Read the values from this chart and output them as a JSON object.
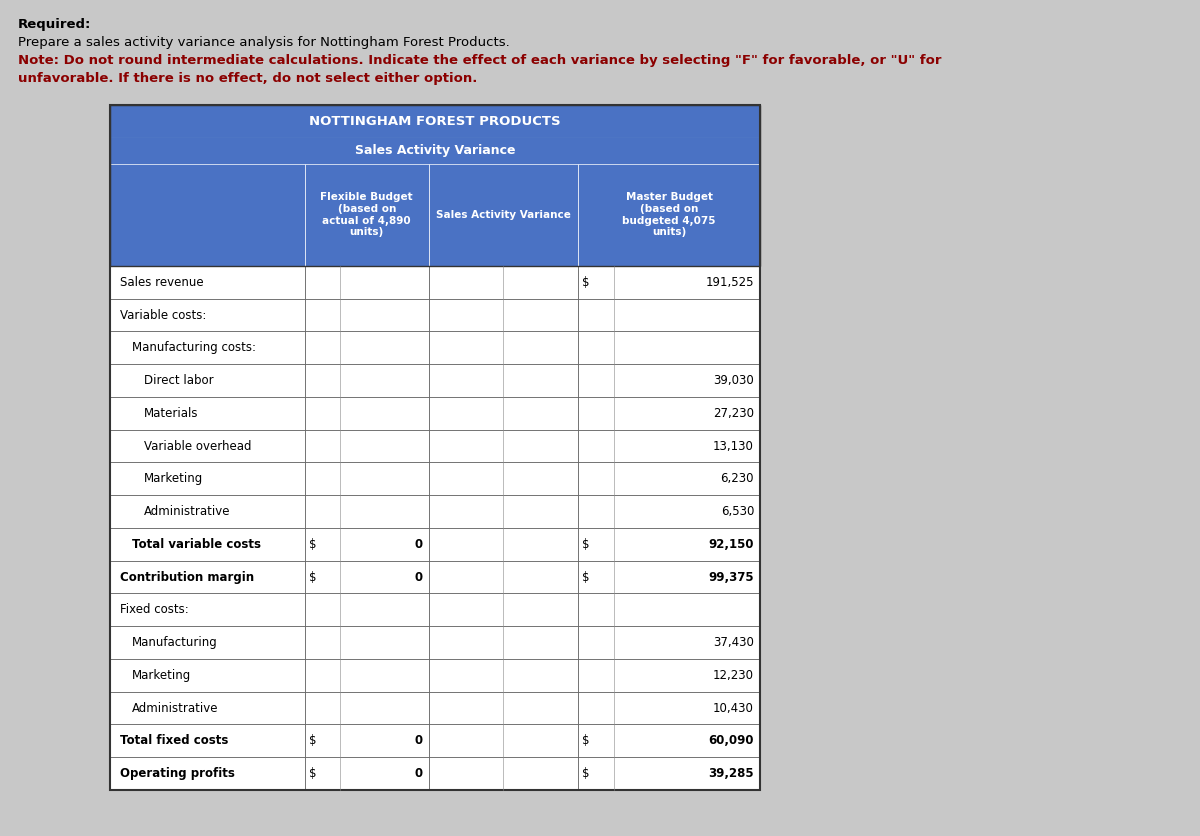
{
  "title_company": "NOTTINGHAM FOREST PRODUCTS",
  "title_report": "Sales Activity Variance",
  "header_bg": "#4a72c4",
  "header_text_color": "#FFFFFF",
  "row_bg": "#FFFFFF",
  "border_color": "#555555",
  "text_color": "#000000",
  "bg_color": "#C8C8C8",
  "rows": [
    {
      "label": "Sales revenue",
      "indent": 0,
      "flex_dollar": false,
      "flex_val": null,
      "mb_dollar": true,
      "mb_val": "191,525",
      "is_total": false,
      "is_section": false
    },
    {
      "label": "Variable costs:",
      "indent": 0,
      "flex_dollar": false,
      "flex_val": null,
      "mb_dollar": false,
      "mb_val": null,
      "is_total": false,
      "is_section": true
    },
    {
      "label": "Manufacturing costs:",
      "indent": 1,
      "flex_dollar": false,
      "flex_val": null,
      "mb_dollar": false,
      "mb_val": null,
      "is_total": false,
      "is_section": true
    },
    {
      "label": "Direct labor",
      "indent": 2,
      "flex_dollar": false,
      "flex_val": null,
      "mb_dollar": false,
      "mb_val": "39,030",
      "is_total": false,
      "is_section": false
    },
    {
      "label": "Materials",
      "indent": 2,
      "flex_dollar": false,
      "flex_val": null,
      "mb_dollar": false,
      "mb_val": "27,230",
      "is_total": false,
      "is_section": false
    },
    {
      "label": "Variable overhead",
      "indent": 2,
      "flex_dollar": false,
      "flex_val": null,
      "mb_dollar": false,
      "mb_val": "13,130",
      "is_total": false,
      "is_section": false
    },
    {
      "label": "Marketing",
      "indent": 2,
      "flex_dollar": false,
      "flex_val": null,
      "mb_dollar": false,
      "mb_val": "6,230",
      "is_total": false,
      "is_section": false
    },
    {
      "label": "Administrative",
      "indent": 2,
      "flex_dollar": false,
      "flex_val": null,
      "mb_dollar": false,
      "mb_val": "6,530",
      "is_total": false,
      "is_section": false
    },
    {
      "label": "Total variable costs",
      "indent": 1,
      "flex_dollar": true,
      "flex_val": "0",
      "mb_dollar": true,
      "mb_val": "92,150",
      "is_total": true,
      "is_section": false
    },
    {
      "label": "Contribution margin",
      "indent": 0,
      "flex_dollar": true,
      "flex_val": "0",
      "mb_dollar": true,
      "mb_val": "99,375",
      "is_total": true,
      "is_section": false
    },
    {
      "label": "Fixed costs:",
      "indent": 0,
      "flex_dollar": false,
      "flex_val": null,
      "mb_dollar": false,
      "mb_val": null,
      "is_total": false,
      "is_section": true
    },
    {
      "label": "Manufacturing",
      "indent": 1,
      "flex_dollar": false,
      "flex_val": null,
      "mb_dollar": false,
      "mb_val": "37,430",
      "is_total": false,
      "is_section": false
    },
    {
      "label": "Marketing",
      "indent": 1,
      "flex_dollar": false,
      "flex_val": null,
      "mb_dollar": false,
      "mb_val": "12,230",
      "is_total": false,
      "is_section": false
    },
    {
      "label": "Administrative",
      "indent": 1,
      "flex_dollar": false,
      "flex_val": null,
      "mb_dollar": false,
      "mb_val": "10,430",
      "is_total": false,
      "is_section": false
    },
    {
      "label": "Total fixed costs",
      "indent": 0,
      "flex_dollar": true,
      "flex_val": "0",
      "mb_dollar": true,
      "mb_val": "60,090",
      "is_total": true,
      "is_section": false
    },
    {
      "label": "Operating profits",
      "indent": 0,
      "flex_dollar": true,
      "flex_val": "0",
      "mb_dollar": true,
      "mb_val": "39,285",
      "is_total": true,
      "is_section": false
    }
  ],
  "inst_line1": "Required:",
  "inst_line2": "Prepare a sales activity variance analysis for Nottingham Forest Products.",
  "inst_line3_normal": "Note: ",
  "inst_line3_bold": "Do not round intermediate calculations. Indicate the effect of each variance by selecting \"F\" for favorable, or \"U\" for",
  "inst_line4_bold": "unfavorable. If there is no effect, do not select either option.",
  "inst_normal_color": "#000000",
  "inst_bold_color": "#8B0000"
}
